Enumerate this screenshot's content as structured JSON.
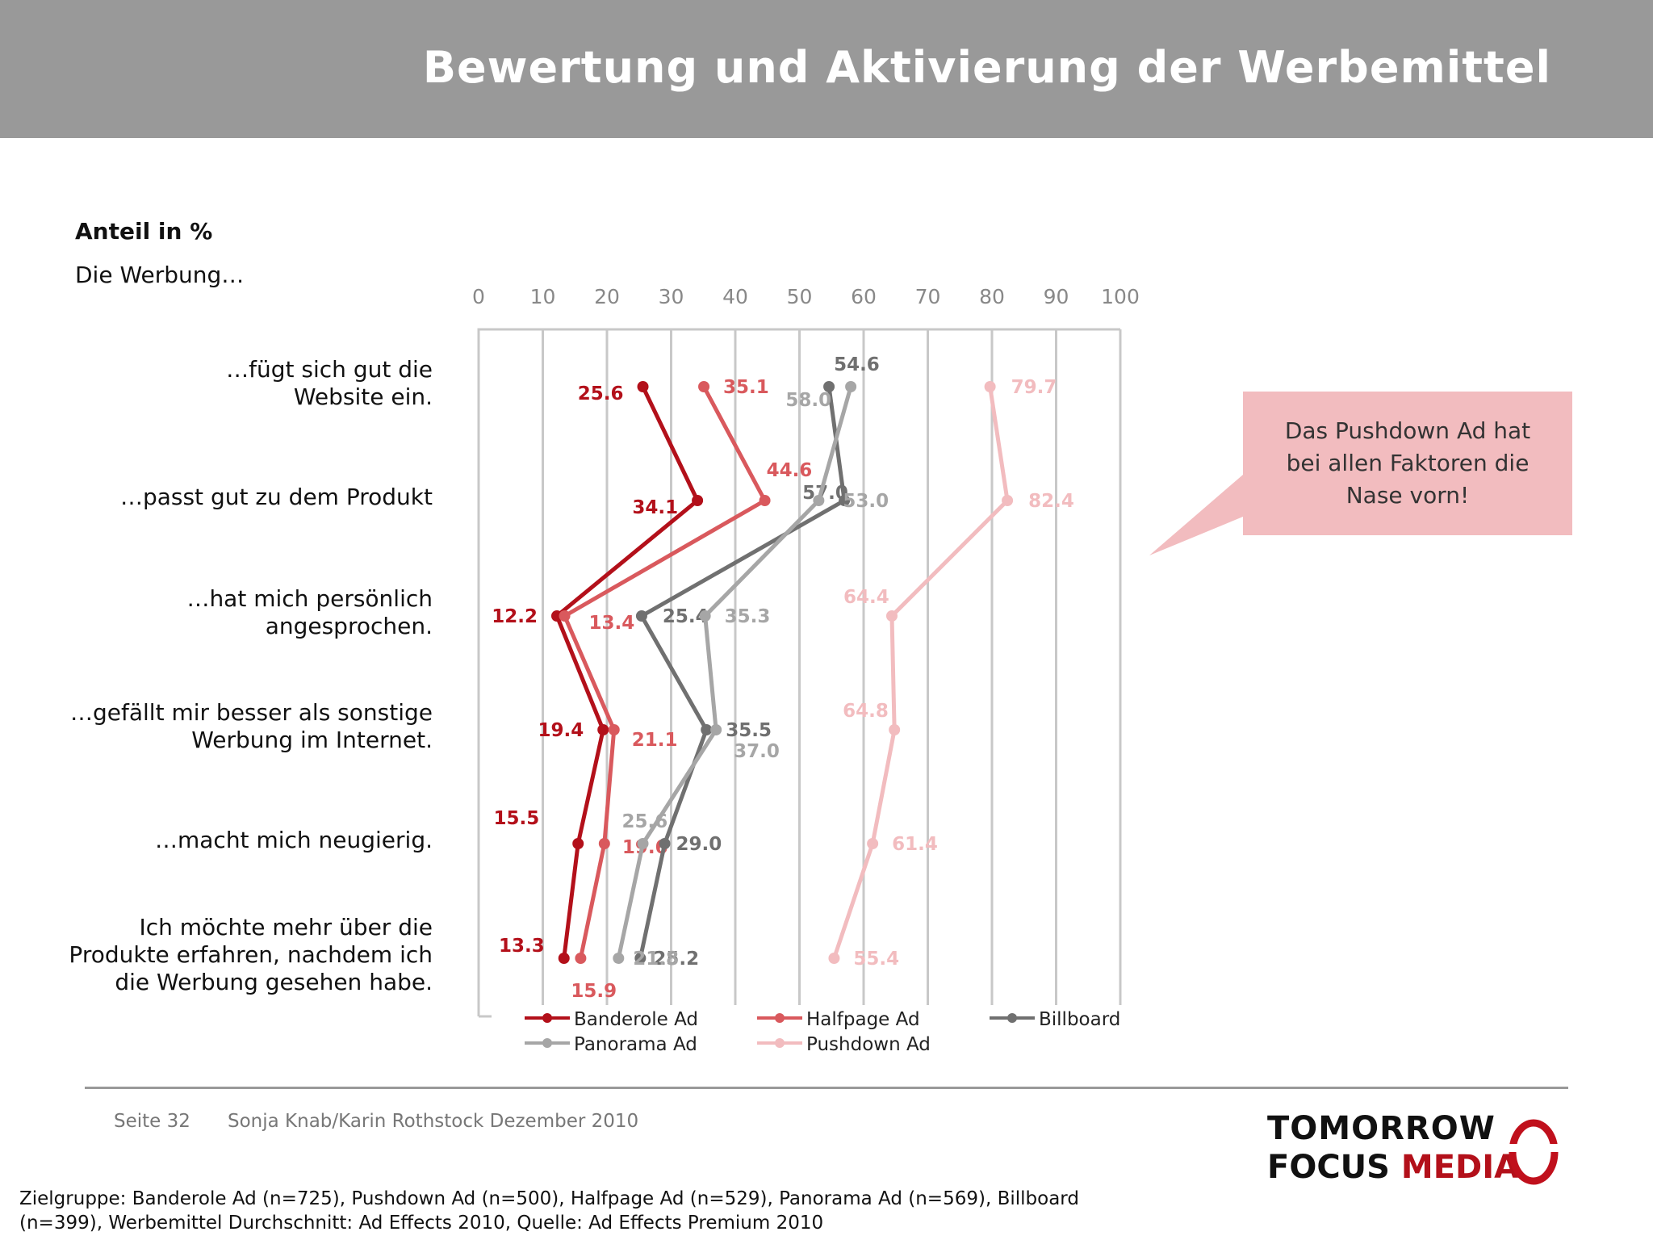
{
  "header": {
    "title": "Bewertung und Aktivierung der Werbemittel"
  },
  "unit_label": "Anteil in %",
  "subtitle": "Die Werbung…",
  "callout": {
    "lines": [
      "Das Pushdown Ad hat",
      "bei allen Faktoren die",
      "Nase vorn!"
    ],
    "color": "#f2bcbf"
  },
  "footer": {
    "page": "Seite 32",
    "author": "Sonja Knab/Karin Rothstock Dezember 2010"
  },
  "logo": {
    "line1": "TOMORROW",
    "focus": "FOCUS",
    "media": "MEDIA"
  },
  "source_note": "Zielgruppe: Banderole Ad (n=725), Pushdown Ad (n=500), Halfpage Ad (n=529), Panorama Ad (n=569), Billboard (n=399), Werbemittel Durchschnitt: Ad Effects 2010, Quelle: Ad Effects Premium 2010",
  "chart_data": {
    "type": "line",
    "orientation": "horizontal",
    "xlim": [
      0,
      100
    ],
    "xticks": [
      0,
      10,
      20,
      30,
      40,
      50,
      60,
      70,
      80,
      90,
      100
    ],
    "grid": true,
    "legend_position": "bottom",
    "categories": [
      [
        "…fügt sich gut die",
        "Website ein."
      ],
      [
        "…passt gut zu dem Produkt"
      ],
      [
        "…hat mich persönlich",
        "angesprochen."
      ],
      [
        "…gefällt mir besser als sonstige",
        "Werbung im Internet."
      ],
      [
        "…macht mich neugierig."
      ],
      [
        "Ich möchte mehr über die",
        "Produkte erfahren, nachdem ich",
        "die Werbung gesehen habe."
      ]
    ],
    "series": [
      {
        "name": "Banderole Ad",
        "color": "#b3101a",
        "values": [
          25.6,
          34.1,
          12.2,
          19.4,
          15.5,
          13.3
        ],
        "labels": [
          "25.6",
          "34.1",
          "12.2",
          "19.4",
          "15.5",
          "13.3"
        ]
      },
      {
        "name": "Halfpage Ad",
        "color": "#d9595d",
        "values": [
          35.1,
          44.6,
          13.4,
          21.1,
          19.6,
          15.9
        ],
        "labels": [
          "35.1",
          "44.6",
          "13.4",
          "21.1",
          "19.6",
          "15.9"
        ]
      },
      {
        "name": "Billboard",
        "color": "#707070",
        "values": [
          54.6,
          57.0,
          25.4,
          35.5,
          29.0,
          25.2
        ],
        "labels": [
          "54.6",
          "57.0",
          "25.4",
          "35.5",
          "29.0",
          "25.2"
        ]
      },
      {
        "name": "Panorama Ad",
        "color": "#a6a6a6",
        "values": [
          58.0,
          53.0,
          35.3,
          37.0,
          25.6,
          21.8
        ],
        "labels": [
          "58.0",
          "53.0",
          "35.3",
          "37.0",
          "25.6",
          "21.8"
        ]
      },
      {
        "name": "Pushdown Ad",
        "color": "#f2bcbf",
        "values": [
          79.7,
          82.4,
          64.4,
          64.8,
          61.4,
          55.4
        ],
        "labels": [
          "79.7",
          "82.4",
          "64.4",
          "64.8",
          "61.4",
          "55.4"
        ]
      }
    ]
  }
}
